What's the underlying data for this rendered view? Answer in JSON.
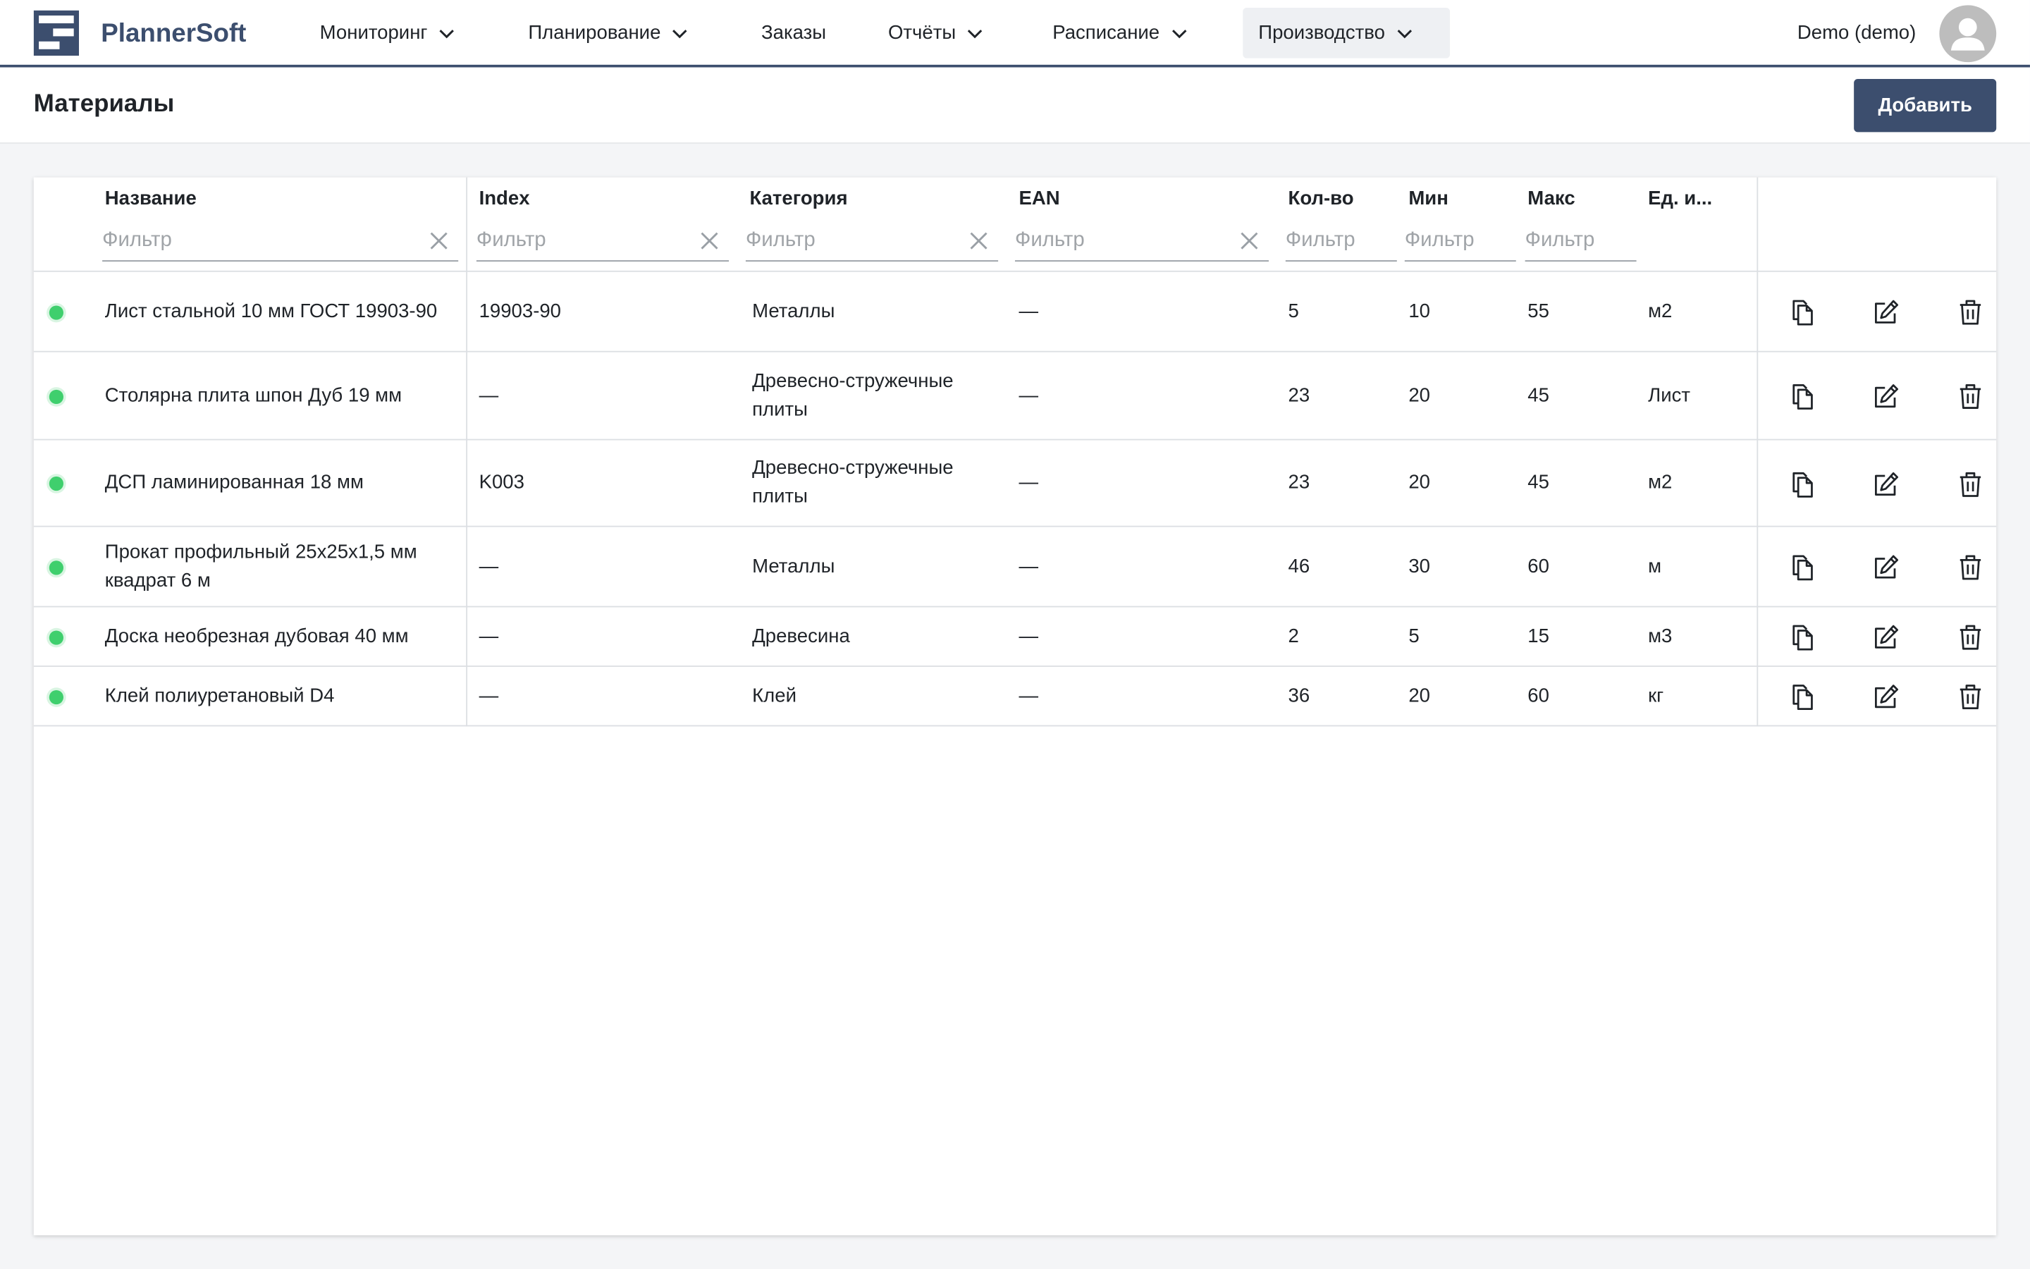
{
  "app": {
    "brand": "PlannerSoft"
  },
  "nav": {
    "items": [
      {
        "label": "Мониторинг",
        "has_dropdown": true,
        "active": false
      },
      {
        "label": "Планирование",
        "has_dropdown": true,
        "active": false
      },
      {
        "label": "Заказы",
        "has_dropdown": false,
        "active": false
      },
      {
        "label": "Отчёты",
        "has_dropdown": true,
        "active": false
      },
      {
        "label": "Расписание",
        "has_dropdown": true,
        "active": false
      },
      {
        "label": "Производство",
        "has_dropdown": true,
        "active": true
      }
    ],
    "user_name": "Demo (demo)"
  },
  "page": {
    "title": "Материалы",
    "add_label": "Добавить"
  },
  "table": {
    "columns": [
      {
        "label": "Название",
        "filter_placeholder": "Фильтр",
        "clearable": true
      },
      {
        "label": "Index",
        "filter_placeholder": "Фильтр",
        "clearable": true
      },
      {
        "label": "Категория",
        "filter_placeholder": "Фильтр",
        "clearable": true
      },
      {
        "label": "EAN",
        "filter_placeholder": "Фильтр",
        "clearable": true
      },
      {
        "label": "Кол-во",
        "filter_placeholder": "Фильтр",
        "clearable": false
      },
      {
        "label": "Мин",
        "filter_placeholder": "Фильтр",
        "clearable": false
      },
      {
        "label": "Макс",
        "filter_placeholder": "Фильтр",
        "clearable": false
      },
      {
        "label": "Ед. и...",
        "filter_placeholder": "",
        "clearable": false
      }
    ],
    "rows": [
      {
        "status": "active",
        "name": "Лист стальной 10 мм ГОСТ 19903-90",
        "index": "19903-90",
        "category": "Металлы",
        "ean": "—",
        "qty": "5",
        "min": "10",
        "max": "55",
        "unit": "м2"
      },
      {
        "status": "active",
        "name": "Столярна плита шпон Дуб 19 мм",
        "index": "—",
        "category": "Древесно-стружечные плиты",
        "ean": "—",
        "qty": "23",
        "min": "20",
        "max": "45",
        "unit": "Лист"
      },
      {
        "status": "active",
        "name": "ДСП ламинированная 18 мм",
        "index": "K003",
        "category": "Древесно-стружечные плиты",
        "ean": "—",
        "qty": "23",
        "min": "20",
        "max": "45",
        "unit": "м2"
      },
      {
        "status": "active",
        "name": "Прокат профильный 25x25x1,5 мм квадрат 6 м",
        "index": "—",
        "category": "Металлы",
        "ean": "—",
        "qty": "46",
        "min": "30",
        "max": "60",
        "unit": "м"
      },
      {
        "status": "active",
        "name": "Доска необрезная дубовая 40 мм",
        "index": "—",
        "category": "Древесина",
        "ean": "—",
        "qty": "2",
        "min": "5",
        "max": "15",
        "unit": "м3"
      },
      {
        "status": "active",
        "name": "Клей полиуретановый D4",
        "index": "—",
        "category": "Клей",
        "ean": "—",
        "qty": "36",
        "min": "20",
        "max": "60",
        "unit": "кг"
      }
    ],
    "row_actions": [
      "copy-icon",
      "edit-icon",
      "trash-icon"
    ]
  },
  "colors": {
    "brand": "#3c4e6e",
    "status_active": "#3fcf6d",
    "border": "#dcdfe3"
  }
}
